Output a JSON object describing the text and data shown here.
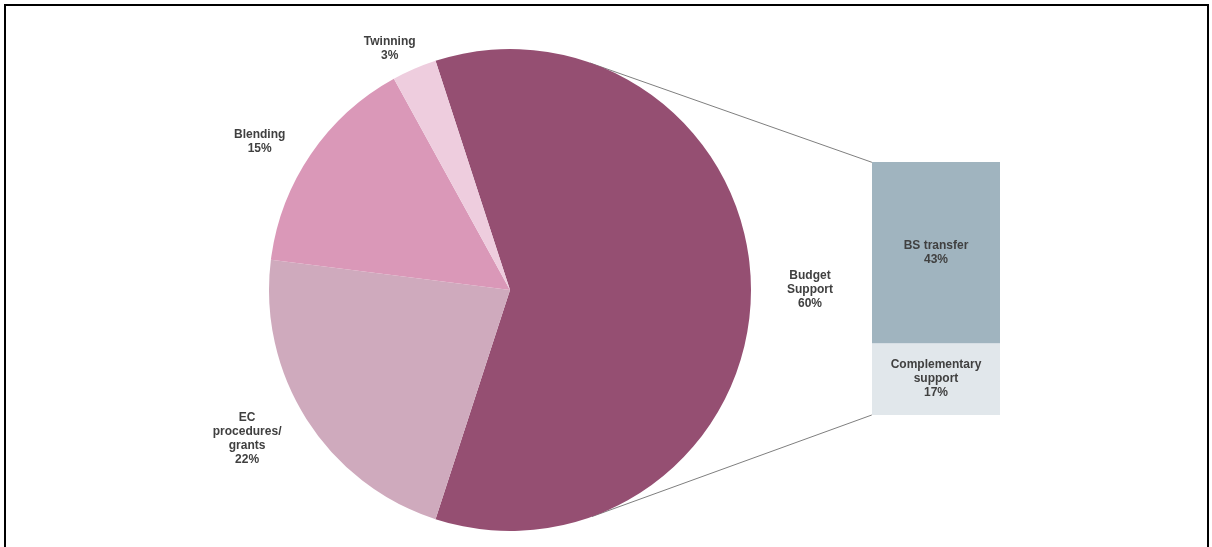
{
  "chart_data": [
    {
      "type": "pie",
      "categories": [
        "Budget Support",
        "EC procedures/grants",
        "Blending",
        "Twinning"
      ],
      "values": [
        60,
        22,
        15,
        3
      ],
      "colors": [
        "#954f72",
        "#cfaabd",
        "#da98b8",
        "#eecdde"
      ],
      "value_labels": [
        "60%",
        "22%",
        "15%",
        "3%"
      ]
    },
    {
      "type": "bar",
      "stacked": true,
      "categories": [
        null
      ],
      "series": [
        {
          "name": "Complementary support",
          "color": "#e1e7eb",
          "values": [
            17
          ],
          "value_labels": [
            "17%"
          ]
        },
        {
          "name": "BS transfer",
          "color": "#a0b4bf",
          "values": [
            43
          ],
          "value_labels": [
            "43%"
          ]
        }
      ],
      "tick_labels": false
    }
  ]
}
